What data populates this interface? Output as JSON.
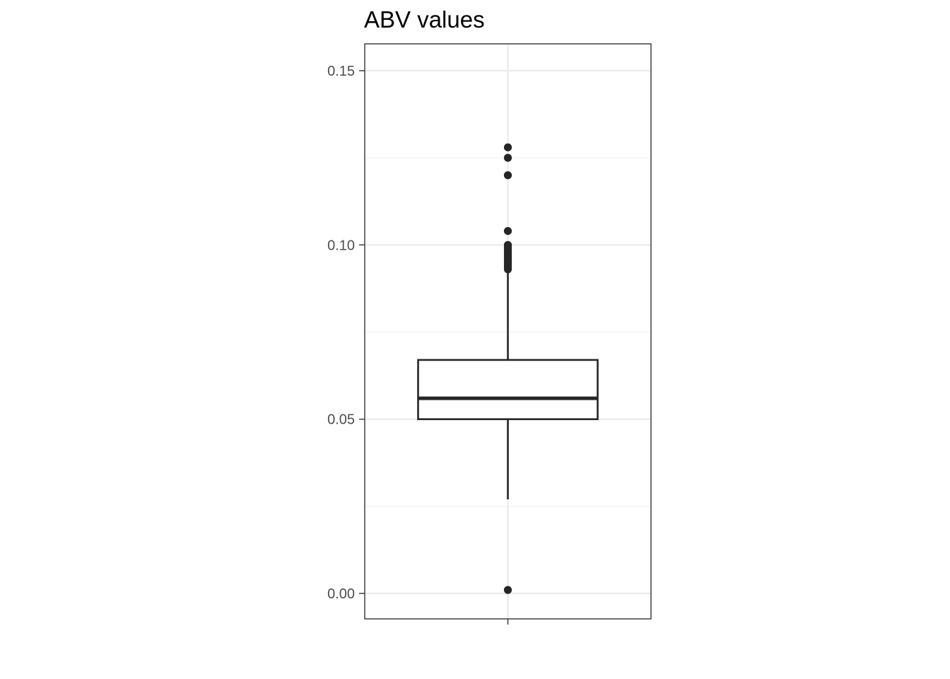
{
  "chart_data": {
    "type": "box",
    "title": "ABV values",
    "xlabel": "",
    "ylabel": "",
    "ylim": [
      -0.0073,
      0.1577
    ],
    "yticks": [
      0.0,
      0.05,
      0.1,
      0.15
    ],
    "ytick_labels": [
      "0.00",
      "0.05",
      "0.10",
      "0.15"
    ],
    "y_minor_gridlines": [
      0.025,
      0.075,
      0.125
    ],
    "grid": true,
    "legend": "none",
    "box": {
      "whisker_low": 0.027,
      "q1": 0.05,
      "median": 0.056,
      "q3": 0.067,
      "whisker_high": 0.092,
      "outliers": [
        0.001,
        0.093,
        0.0935,
        0.094,
        0.0945,
        0.095,
        0.0955,
        0.096,
        0.0965,
        0.097,
        0.0975,
        0.098,
        0.0985,
        0.099,
        0.0995,
        0.1,
        0.104,
        0.12,
        0.125,
        0.128
      ]
    },
    "colors": {
      "box_line": "#262626",
      "panel_border": "#333333",
      "grid_major": "#ebebeb",
      "grid_minor": "#f2f2f2",
      "tick_label": "#4d4d4d",
      "title": "#000000",
      "background": "#ffffff"
    }
  }
}
